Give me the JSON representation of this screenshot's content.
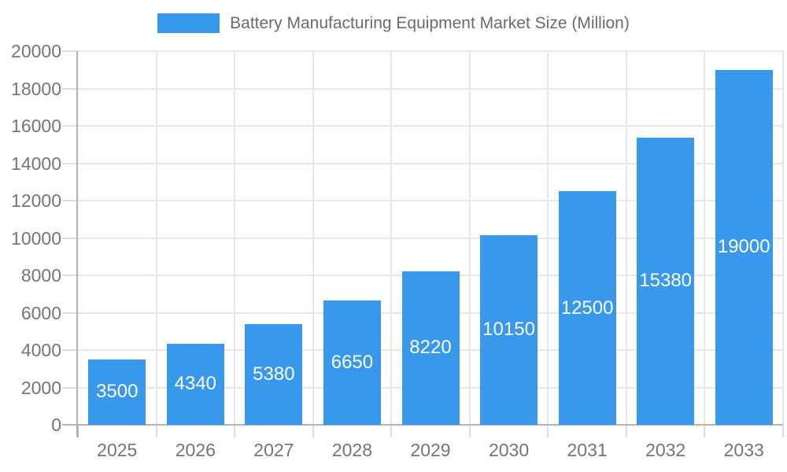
{
  "chart_data": {
    "type": "bar",
    "title": "Battery Manufacturing Equipment Market Size (Million)",
    "categories": [
      "2025",
      "2026",
      "2027",
      "2028",
      "2029",
      "2030",
      "2031",
      "2032",
      "2033"
    ],
    "values": [
      3500,
      4340,
      5380,
      6650,
      8220,
      10150,
      12500,
      15380,
      19000
    ],
    "xlabel": "",
    "ylabel": "",
    "ylim": [
      0,
      20000
    ],
    "ytick_step": 2000,
    "ytick_labels": [
      "0",
      "2000",
      "4000",
      "6000",
      "8000",
      "10000",
      "12000",
      "14000",
      "16000",
      "18000",
      "20000"
    ],
    "grid": true,
    "legend_position": "top-center",
    "value_label_position": "inside-center"
  },
  "colors": {
    "bar": "#3898EC",
    "axis": "#b3b3b3",
    "grid": "#e7e7e7",
    "tick": "#dcdcdc",
    "axis_label": "#757575",
    "legend_text": "#6b6b6b",
    "value_label": "#ffffff",
    "background": "#ffffff"
  }
}
